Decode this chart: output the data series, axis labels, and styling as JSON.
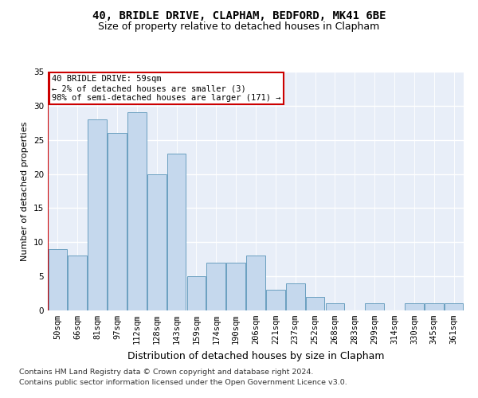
{
  "title": "40, BRIDLE DRIVE, CLAPHAM, BEDFORD, MK41 6BE",
  "subtitle": "Size of property relative to detached houses in Clapham",
  "xlabel": "Distribution of detached houses by size in Clapham",
  "ylabel": "Number of detached properties",
  "categories": [
    "50sqm",
    "66sqm",
    "81sqm",
    "97sqm",
    "112sqm",
    "128sqm",
    "143sqm",
    "159sqm",
    "174sqm",
    "190sqm",
    "206sqm",
    "221sqm",
    "237sqm",
    "252sqm",
    "268sqm",
    "283sqm",
    "299sqm",
    "314sqm",
    "330sqm",
    "345sqm",
    "361sqm"
  ],
  "values": [
    9,
    8,
    28,
    26,
    29,
    20,
    23,
    5,
    7,
    7,
    8,
    3,
    4,
    2,
    1,
    0,
    1,
    0,
    1,
    1,
    1
  ],
  "bar_color": "#c5d8ed",
  "bar_edge_color": "#6a9fc0",
  "background_color": "#e8eef8",
  "annotation_text": "40 BRIDLE DRIVE: 59sqm\n← 2% of detached houses are smaller (3)\n98% of semi-detached houses are larger (171) →",
  "annotation_box_color": "#ffffff",
  "annotation_box_edge": "#cc0000",
  "ylim": [
    0,
    35
  ],
  "yticks": [
    0,
    5,
    10,
    15,
    20,
    25,
    30,
    35
  ],
  "footer_line1": "Contains HM Land Registry data © Crown copyright and database right 2024.",
  "footer_line2": "Contains public sector information licensed under the Open Government Licence v3.0.",
  "title_fontsize": 10,
  "subtitle_fontsize": 9,
  "xlabel_fontsize": 9,
  "ylabel_fontsize": 8,
  "tick_fontsize": 7.5,
  "footer_fontsize": 6.8,
  "annot_fontsize": 7.5
}
